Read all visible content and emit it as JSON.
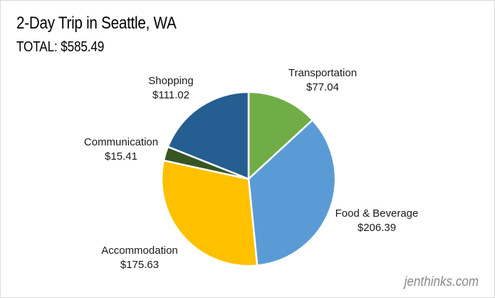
{
  "header": {
    "title": "2-Day Trip in Seattle, WA",
    "subtitle": "TOTAL: $585.49"
  },
  "watermark": "jenthinks.com",
  "chart_data": {
    "type": "pie",
    "title": "2-Day Trip in Seattle, WA",
    "subtitle": "TOTAL: $585.49",
    "legend": "none",
    "slices": [
      {
        "label": "Transportation",
        "value": 77.04,
        "display": "$77.04",
        "color": "#70ad47"
      },
      {
        "label": "Food & Beverage",
        "value": 206.39,
        "display": "$206.39",
        "color": "#5b9bd5"
      },
      {
        "label": "Accommodation",
        "value": 175.63,
        "display": "$175.63",
        "color": "#ffc000"
      },
      {
        "label": "Communication",
        "value": 15.41,
        "display": "$15.41",
        "color": "#375623"
      },
      {
        "label": "Shopping",
        "value": 111.02,
        "display": "$111.02",
        "color": "#255e91"
      }
    ]
  }
}
